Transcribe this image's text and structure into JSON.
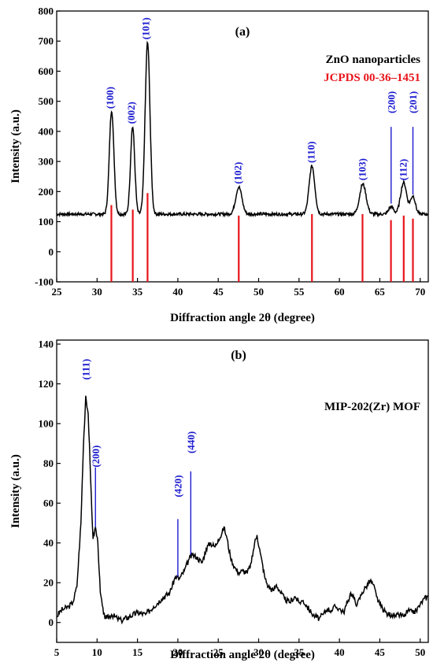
{
  "colors": {
    "curve": "#000000",
    "ref": "#e8141b",
    "hkl": "#1c1ccf"
  },
  "chart_data": [
    {
      "type": "line",
      "panel_label": "(a)",
      "xlabel": "Diffraction angle 2θ (degree)",
      "ylabel": "Intensity (a.u.)",
      "xlim": [
        25,
        71
      ],
      "ylim": [
        -100,
        800
      ],
      "xticks": [
        25,
        30,
        35,
        40,
        45,
        50,
        55,
        60,
        65,
        70
      ],
      "yticks": [
        -100,
        0,
        100,
        200,
        300,
        400,
        500,
        600,
        700,
        800
      ],
      "legend": {
        "placement": "top-right",
        "entries": [
          "ZnO nanoparticles",
          "JCPDS 00-36–1451"
        ]
      },
      "series": [
        {
          "name": "ZnO nanoparticles",
          "baseline": 125,
          "noise": 5,
          "peaks": [
            {
              "x": 31.8,
              "h": 345,
              "w": 0.28
            },
            {
              "x": 34.4,
              "h": 290,
              "w": 0.26
            },
            {
              "x": 36.25,
              "h": 570,
              "w": 0.3
            },
            {
              "x": 47.55,
              "h": 90,
              "w": 0.38
            },
            {
              "x": 56.6,
              "h": 160,
              "w": 0.35
            },
            {
              "x": 62.9,
              "h": 100,
              "w": 0.4
            },
            {
              "x": 66.4,
              "h": 25,
              "w": 0.3
            },
            {
              "x": 67.95,
              "h": 105,
              "w": 0.38
            },
            {
              "x": 69.1,
              "h": 60,
              "w": 0.3
            }
          ]
        },
        {
          "name": "JCPDS 00-36–1451",
          "type": "stick",
          "from": -100,
          "sticks": [
            {
              "x": 31.77,
              "y": 155
            },
            {
              "x": 34.42,
              "y": 140
            },
            {
              "x": 36.25,
              "y": 195
            },
            {
              "x": 47.54,
              "y": 120
            },
            {
              "x": 56.6,
              "y": 125
            },
            {
              "x": 62.86,
              "y": 125
            },
            {
              "x": 66.38,
              "y": 105
            },
            {
              "x": 67.96,
              "y": 120
            },
            {
              "x": 69.1,
              "y": 110
            }
          ]
        }
      ],
      "annotations": [
        {
          "text": "(100)",
          "x": 31.6,
          "y": 475,
          "vertical": true
        },
        {
          "text": "(002)",
          "x": 34.2,
          "y": 425,
          "vertical": true
        },
        {
          "text": "(101)",
          "x": 36.0,
          "y": 705,
          "vertical": true
        },
        {
          "text": "(102)",
          "x": 47.4,
          "y": 225,
          "vertical": true
        },
        {
          "text": "(110)",
          "x": 56.5,
          "y": 295,
          "vertical": true
        },
        {
          "text": "(103)",
          "x": 62.8,
          "y": 237,
          "vertical": true
        },
        {
          "text": "(200)",
          "x": 66.4,
          "y": 460,
          "vertical": true,
          "leader": [
            160,
            415
          ]
        },
        {
          "text": "(112)",
          "x": 67.9,
          "y": 237,
          "vertical": true
        },
        {
          "text": "(201)",
          "x": 69.1,
          "y": 460,
          "vertical": true,
          "leader": [
            190,
            415
          ]
        }
      ]
    },
    {
      "type": "line",
      "panel_label": "(b)",
      "xlabel": "Diffraction angle 2θ (degree)",
      "ylabel": "Intensity (a.u.)",
      "xlim": [
        5,
        51
      ],
      "ylim": [
        -10,
        142
      ],
      "xticks": [
        5,
        10,
        15,
        20,
        25,
        30,
        35,
        40,
        45,
        50
      ],
      "yticks": [
        0,
        20,
        40,
        60,
        80,
        100,
        120,
        140
      ],
      "legend": {
        "placement": "top-right",
        "entries": [
          "MIP-202(Zr) MOF"
        ]
      },
      "series": [
        {
          "name": "MIP-202(Zr) MOF",
          "points": [
            [
              5,
              3
            ],
            [
              5.5,
              6
            ],
            [
              6,
              7
            ],
            [
              6.5,
              8
            ],
            [
              7,
              10
            ],
            [
              7.5,
              18
            ],
            [
              8,
              50
            ],
            [
              8.3,
              88
            ],
            [
              8.6,
              114
            ],
            [
              8.9,
              105
            ],
            [
              9.2,
              72
            ],
            [
              9.5,
              42
            ],
            [
              9.8,
              48
            ],
            [
              10.1,
              40
            ],
            [
              10.4,
              15
            ],
            [
              10.8,
              4
            ],
            [
              11.2,
              2
            ],
            [
              11.8,
              4
            ],
            [
              12.5,
              2
            ],
            [
              13,
              1
            ],
            [
              14,
              3
            ],
            [
              15,
              5
            ],
            [
              16,
              4
            ],
            [
              17,
              8
            ],
            [
              18,
              12
            ],
            [
              19,
              15
            ],
            [
              19.7,
              23
            ],
            [
              20.2,
              22
            ],
            [
              20.8,
              26
            ],
            [
              21.4,
              32
            ],
            [
              21.8,
              34
            ],
            [
              22.3,
              33
            ],
            [
              23,
              30
            ],
            [
              23.5,
              37
            ],
            [
              24,
              40
            ],
            [
              24.6,
              38
            ],
            [
              25,
              42
            ],
            [
              25.4,
              44
            ],
            [
              25.7,
              48
            ],
            [
              26.1,
              42
            ],
            [
              26.5,
              33
            ],
            [
              27,
              28
            ],
            [
              27.5,
              25
            ],
            [
              28,
              26
            ],
            [
              28.6,
              25
            ],
            [
              29.1,
              30
            ],
            [
              29.5,
              40
            ],
            [
              29.8,
              44
            ],
            [
              30.2,
              35
            ],
            [
              30.8,
              22
            ],
            [
              31.2,
              18
            ],
            [
              31.8,
              16
            ],
            [
              32.2,
              19
            ],
            [
              32.6,
              16
            ],
            [
              33.2,
              12
            ],
            [
              33.8,
              10
            ],
            [
              34.5,
              13
            ],
            [
              35,
              10
            ],
            [
              35.5,
              11
            ],
            [
              36,
              8
            ],
            [
              36.5,
              5
            ],
            [
              37,
              3
            ],
            [
              37.5,
              2
            ],
            [
              38,
              4
            ],
            [
              38.5,
              7
            ],
            [
              39,
              6
            ],
            [
              39.5,
              8
            ],
            [
              40,
              7
            ],
            [
              40.5,
              5
            ],
            [
              41,
              10
            ],
            [
              41.4,
              15
            ],
            [
              41.8,
              12
            ],
            [
              42.2,
              9
            ],
            [
              42.8,
              15
            ],
            [
              43.3,
              18
            ],
            [
              43.8,
              21
            ],
            [
              44.2,
              19
            ],
            [
              44.6,
              13
            ],
            [
              45,
              9
            ],
            [
              45.5,
              6
            ],
            [
              46,
              4
            ],
            [
              46.5,
              4
            ],
            [
              47,
              3
            ],
            [
              47.5,
              4
            ],
            [
              48,
              3
            ],
            [
              48.5,
              6
            ],
            [
              49,
              5
            ],
            [
              49.5,
              6
            ],
            [
              50,
              9
            ],
            [
              50.5,
              12
            ],
            [
              51,
              13
            ]
          ]
        }
      ],
      "annotations": [
        {
          "text": "(111)",
          "x": 8.6,
          "y": 122,
          "vertical": true
        },
        {
          "text": "(200)",
          "x": 9.8,
          "y": 78,
          "vertical": true,
          "leader": [
            48,
            78
          ]
        },
        {
          "text": "(420)",
          "x": 20.0,
          "y": 63,
          "vertical": true,
          "leader": [
            23,
            52
          ]
        },
        {
          "text": "(440)",
          "x": 21.6,
          "y": 85,
          "vertical": true,
          "leader": [
            34,
            76
          ]
        }
      ]
    }
  ]
}
